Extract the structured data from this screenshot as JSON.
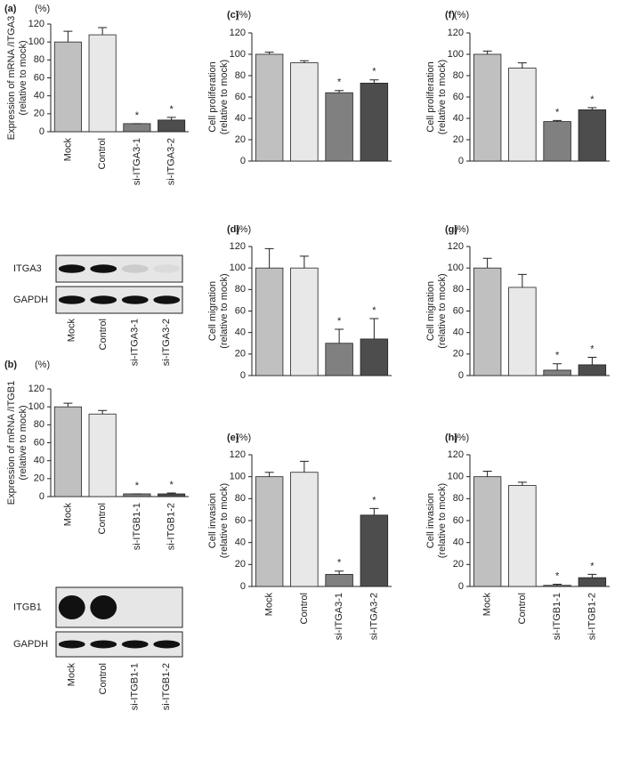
{
  "chart_data": [
    {
      "type": "bar",
      "panel": "(a)",
      "unit": "(%)",
      "ylabel": [
        "Expression of mRNA /ITGA3",
        "(relative to mock)"
      ],
      "categories": [
        "Mock",
        "Control",
        "si-ITGA3-1",
        "si-ITGA3-2"
      ],
      "values": [
        100,
        108,
        9,
        13
      ],
      "errors": [
        12,
        8,
        0,
        3
      ],
      "colors": [
        "#c0c0c0",
        "#e8e8e8",
        "#808080",
        "#4d4d4d"
      ],
      "annotations": [
        null,
        null,
        "*",
        "*"
      ],
      "ylim": [
        0,
        120
      ],
      "yticks": [
        0,
        20,
        40,
        60,
        80,
        100,
        120
      ]
    },
    {
      "type": "bar",
      "panel": "(b)",
      "unit": "(%)",
      "ylabel": [
        "Expression of mRNA /ITGB1",
        "(relative to mock)"
      ],
      "categories": [
        "Mock",
        "Control",
        "si-ITGB1-1",
        "si-ITGB1-2"
      ],
      "values": [
        100,
        92,
        3,
        3
      ],
      "errors": [
        4,
        4,
        0,
        1
      ],
      "colors": [
        "#c0c0c0",
        "#e8e8e8",
        "#808080",
        "#4d4d4d"
      ],
      "annotations": [
        null,
        null,
        "*",
        "*"
      ],
      "ylim": [
        0,
        120
      ],
      "yticks": [
        0,
        20,
        40,
        60,
        80,
        100,
        120
      ]
    },
    {
      "type": "bar",
      "panel": "(c)",
      "unit": "(%)",
      "ylabel": [
        "Cell proliferation",
        "(relative to mock)"
      ],
      "values": [
        100,
        92,
        64,
        73
      ],
      "errors": [
        2,
        2,
        2,
        3
      ],
      "colors": [
        "#c0c0c0",
        "#e8e8e8",
        "#808080",
        "#4d4d4d"
      ],
      "annotations": [
        null,
        null,
        "*",
        "*"
      ],
      "ylim": [
        0,
        120
      ],
      "yticks": [
        0,
        20,
        40,
        60,
        80,
        100,
        120
      ]
    },
    {
      "type": "bar",
      "panel": "(d)",
      "unit": "(%)",
      "ylabel": [
        "Cell migration",
        "(relative to mock)"
      ],
      "values": [
        100,
        100,
        30,
        34
      ],
      "errors": [
        18,
        11,
        13,
        19
      ],
      "colors": [
        "#c0c0c0",
        "#e8e8e8",
        "#808080",
        "#4d4d4d"
      ],
      "annotations": [
        null,
        null,
        "*",
        "*"
      ],
      "ylim": [
        0,
        120
      ],
      "yticks": [
        0,
        20,
        40,
        60,
        80,
        100,
        120
      ]
    },
    {
      "type": "bar",
      "panel": "(e)",
      "unit": "(%)",
      "ylabel": [
        "Cell invasion",
        "(relative to mock)"
      ],
      "categories": [
        "Mock",
        "Control",
        "si-ITGA3-1",
        "si-ITGA3-2"
      ],
      "values": [
        100,
        104,
        11,
        65
      ],
      "errors": [
        4,
        10,
        3,
        6
      ],
      "colors": [
        "#c0c0c0",
        "#e8e8e8",
        "#808080",
        "#4d4d4d"
      ],
      "annotations": [
        null,
        null,
        "*",
        "*"
      ],
      "ylim": [
        0,
        120
      ],
      "yticks": [
        0,
        20,
        40,
        60,
        80,
        100,
        120
      ]
    },
    {
      "type": "bar",
      "panel": "(f)",
      "unit": "(%)",
      "ylabel": [
        "Cell proliferation",
        "(relative to mock)"
      ],
      "values": [
        100,
        87,
        37,
        48
      ],
      "errors": [
        3,
        5,
        1,
        2
      ],
      "colors": [
        "#c0c0c0",
        "#e8e8e8",
        "#808080",
        "#4d4d4d"
      ],
      "annotations": [
        null,
        null,
        "*",
        "*"
      ],
      "ylim": [
        0,
        120
      ],
      "yticks": [
        0,
        20,
        40,
        60,
        80,
        100,
        120
      ]
    },
    {
      "type": "bar",
      "panel": "(g)",
      "unit": "(%)",
      "ylabel": [
        "Cell migration",
        "(relative to mock)"
      ],
      "values": [
        100,
        82,
        5,
        10
      ],
      "errors": [
        9,
        12,
        6,
        7
      ],
      "colors": [
        "#c0c0c0",
        "#e8e8e8",
        "#808080",
        "#4d4d4d"
      ],
      "annotations": [
        null,
        null,
        "*",
        "*"
      ],
      "ylim": [
        0,
        120
      ],
      "yticks": [
        0,
        20,
        40,
        60,
        80,
        100,
        120
      ]
    },
    {
      "type": "bar",
      "panel": "(h)",
      "unit": "(%)",
      "ylabel": [
        "Cell invasion",
        "(relative to mock)"
      ],
      "categories": [
        "Mock",
        "Control",
        "si-ITGB1-1",
        "si-ITGB1-2"
      ],
      "values": [
        100,
        92,
        1,
        8
      ],
      "errors": [
        5,
        3,
        1,
        3
      ],
      "colors": [
        "#c0c0c0",
        "#e8e8e8",
        "#808080",
        "#4d4d4d"
      ],
      "annotations": [
        null,
        null,
        "*",
        "*"
      ],
      "ylim": [
        0,
        120
      ],
      "yticks": [
        0,
        20,
        40,
        60,
        80,
        100,
        120
      ]
    }
  ],
  "blots": [
    {
      "rows": [
        "ITGA3",
        "GAPDH"
      ],
      "categories": [
        "Mock",
        "Control",
        "si-ITGA3-1",
        "si-ITGA3-2"
      ]
    },
    {
      "rows": [
        "ITGB1",
        "GAPDH"
      ],
      "categories": [
        "Mock",
        "Control",
        "si-ITGB1-1",
        "si-ITGB1-2"
      ]
    }
  ]
}
